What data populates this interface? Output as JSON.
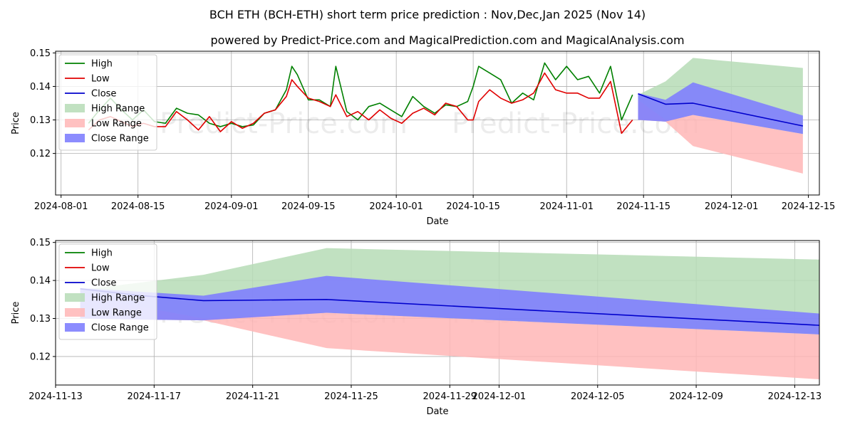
{
  "title": "BCH ETH (BCH-ETH) short term price prediction : Nov,Dec,Jan 2025 (Nov 14)",
  "subtitle": "powered by Predict-Price.com and MagicalPrediction.com and MagicalAnalysis.com",
  "watermark": "Predict-Price.com",
  "colors": {
    "high": "#008000",
    "low": "#e00000",
    "close": "#0000cc",
    "high_range": "#b6dcb6",
    "low_range": "#ffb6b6",
    "close_range": "#7f7ffe"
  },
  "chart_data": [
    {
      "type": "line",
      "name": "history-and-forecast",
      "xlabel": "Date",
      "ylabel": "Price",
      "xlim": [
        "2024-07-31",
        "2024-12-17"
      ],
      "ylim": [
        0.1076,
        0.1505
      ],
      "xticks": [
        "2024-08-01",
        "2024-08-15",
        "2024-09-01",
        "2024-09-15",
        "2024-10-01",
        "2024-10-15",
        "2024-11-01",
        "2024-11-15",
        "2024-12-01",
        "2024-12-15"
      ],
      "yticks": [
        0.12,
        0.13,
        0.14,
        0.15
      ],
      "legend": [
        "High",
        "Low",
        "Close",
        "High Range",
        "Low Range",
        "Close Range"
      ],
      "legend_position": "top-left",
      "grid": true,
      "series": [
        {
          "name": "High",
          "x": [
            "2024-08-06",
            "2024-08-08",
            "2024-08-10",
            "2024-08-12",
            "2024-08-14",
            "2024-08-16",
            "2024-08-18",
            "2024-08-20",
            "2024-08-22",
            "2024-08-24",
            "2024-08-26",
            "2024-08-28",
            "2024-08-30",
            "2024-09-01",
            "2024-09-03",
            "2024-09-05",
            "2024-09-07",
            "2024-09-09",
            "2024-09-11",
            "2024-09-12",
            "2024-09-13",
            "2024-09-15",
            "2024-09-17",
            "2024-09-19",
            "2024-09-20",
            "2024-09-22",
            "2024-09-24",
            "2024-09-26",
            "2024-09-28",
            "2024-09-30",
            "2024-10-02",
            "2024-10-04",
            "2024-10-06",
            "2024-10-08",
            "2024-10-10",
            "2024-10-12",
            "2024-10-14",
            "2024-10-15",
            "2024-10-16",
            "2024-10-18",
            "2024-10-20",
            "2024-10-22",
            "2024-10-24",
            "2024-10-26",
            "2024-10-28",
            "2024-10-30",
            "2024-11-01",
            "2024-11-03",
            "2024-11-05",
            "2024-11-07",
            "2024-11-09",
            "2024-11-11",
            "2024-11-13"
          ],
          "values": [
            0.129,
            0.133,
            0.1365,
            0.133,
            0.13,
            0.133,
            0.1295,
            0.129,
            0.1335,
            0.132,
            0.1315,
            0.129,
            0.128,
            0.129,
            0.128,
            0.1285,
            0.132,
            0.133,
            0.139,
            0.146,
            0.1435,
            0.136,
            0.136,
            0.134,
            0.146,
            0.1325,
            0.13,
            0.134,
            0.135,
            0.133,
            0.131,
            0.137,
            0.134,
            0.132,
            0.1345,
            0.134,
            0.1355,
            0.14,
            0.146,
            0.144,
            0.142,
            0.135,
            0.138,
            0.136,
            0.147,
            0.142,
            0.146,
            0.142,
            0.143,
            0.138,
            0.146,
            0.13,
            0.1375
          ]
        },
        {
          "name": "Low",
          "x": [
            "2024-08-06",
            "2024-08-08",
            "2024-08-10",
            "2024-08-12",
            "2024-08-14",
            "2024-08-16",
            "2024-08-18",
            "2024-08-20",
            "2024-08-22",
            "2024-08-24",
            "2024-08-26",
            "2024-08-28",
            "2024-08-30",
            "2024-09-01",
            "2024-09-03",
            "2024-09-05",
            "2024-09-07",
            "2024-09-09",
            "2024-09-11",
            "2024-09-12",
            "2024-09-13",
            "2024-09-15",
            "2024-09-17",
            "2024-09-19",
            "2024-09-20",
            "2024-09-22",
            "2024-09-24",
            "2024-09-26",
            "2024-09-28",
            "2024-09-30",
            "2024-10-02",
            "2024-10-04",
            "2024-10-06",
            "2024-10-08",
            "2024-10-10",
            "2024-10-12",
            "2024-10-14",
            "2024-10-15",
            "2024-10-16",
            "2024-10-18",
            "2024-10-20",
            "2024-10-22",
            "2024-10-24",
            "2024-10-26",
            "2024-10-28",
            "2024-10-30",
            "2024-11-01",
            "2024-11-03",
            "2024-11-05",
            "2024-11-07",
            "2024-11-09",
            "2024-11-11",
            "2024-11-13"
          ],
          "values": [
            0.127,
            0.13,
            0.131,
            0.1295,
            0.128,
            0.129,
            0.128,
            0.128,
            0.1325,
            0.13,
            0.127,
            0.131,
            0.1265,
            0.1295,
            0.1275,
            0.129,
            0.132,
            0.133,
            0.137,
            0.142,
            0.14,
            0.1365,
            0.1355,
            0.134,
            0.1375,
            0.131,
            0.1325,
            0.13,
            0.133,
            0.1305,
            0.129,
            0.132,
            0.1335,
            0.1315,
            0.135,
            0.134,
            0.13,
            0.13,
            0.1355,
            0.139,
            0.1365,
            0.135,
            0.136,
            0.138,
            0.144,
            0.139,
            0.138,
            0.138,
            0.1365,
            0.1365,
            0.1415,
            0.126,
            0.13
          ]
        },
        {
          "name": "Close",
          "x": [
            "2024-11-14",
            "2024-11-19",
            "2024-11-24",
            "2024-12-14"
          ],
          "values": [
            0.1378,
            0.1347,
            0.135,
            0.1282
          ]
        }
      ],
      "ranges": [
        {
          "name": "High Range",
          "x": [
            "2024-11-14",
            "2024-11-19",
            "2024-11-24",
            "2024-12-14"
          ],
          "upper": [
            0.1375,
            0.1415,
            0.1485,
            0.1455
          ],
          "lower": [
            0.13,
            0.1295,
            0.1315,
            0.1258
          ]
        },
        {
          "name": "Low Range",
          "x": [
            "2024-11-14",
            "2024-11-19",
            "2024-11-24",
            "2024-12-14"
          ],
          "upper": [
            0.136,
            0.13,
            0.1315,
            0.1258
          ],
          "lower": [
            0.13,
            0.1295,
            0.1222,
            0.114
          ]
        },
        {
          "name": "Close Range",
          "x": [
            "2024-11-14",
            "2024-11-19",
            "2024-11-24",
            "2024-12-14"
          ],
          "upper": [
            0.138,
            0.136,
            0.1412,
            0.1313
          ],
          "lower": [
            0.13,
            0.1295,
            0.1315,
            0.1258
          ]
        }
      ]
    },
    {
      "type": "line",
      "name": "forecast-detail",
      "xlabel": "Date",
      "ylabel": "Price",
      "xlim": [
        "2024-11-13",
        "2024-12-14"
      ],
      "ylim": [
        0.1125,
        0.1505
      ],
      "xticks": [
        "2024-11-13",
        "2024-11-17",
        "2024-11-21",
        "2024-11-25",
        "2024-11-29",
        "2024-12-01",
        "2024-12-05",
        "2024-12-09",
        "2024-12-13"
      ],
      "yticks": [
        0.12,
        0.13,
        0.14,
        0.15
      ],
      "legend": [
        "High",
        "Low",
        "Close",
        "High Range",
        "Low Range",
        "Close Range"
      ],
      "legend_position": "top-left",
      "grid": true,
      "series": [
        {
          "name": "Close",
          "x": [
            "2024-11-14",
            "2024-11-16.5",
            "2024-11-19",
            "2024-11-24",
            "2024-12-14"
          ],
          "values": [
            0.1378,
            0.136,
            0.1347,
            0.135,
            0.1282
          ]
        }
      ],
      "ranges": [
        {
          "name": "High Range",
          "x": [
            "2024-11-14",
            "2024-11-16.5",
            "2024-11-19",
            "2024-11-24",
            "2024-12-14"
          ],
          "upper": [
            0.1375,
            0.1395,
            0.1415,
            0.1485,
            0.1455
          ],
          "lower": [
            0.13,
            0.1297,
            0.1295,
            0.1315,
            0.1258
          ]
        },
        {
          "name": "Low Range",
          "x": [
            "2024-11-14",
            "2024-11-16.5",
            "2024-11-19",
            "2024-11-24",
            "2024-12-14"
          ],
          "upper": [
            0.136,
            0.133,
            0.13,
            0.1315,
            0.1258
          ],
          "lower": [
            0.13,
            0.1297,
            0.1295,
            0.1222,
            0.114
          ]
        },
        {
          "name": "Close Range",
          "x": [
            "2024-11-14",
            "2024-11-16.5",
            "2024-11-19",
            "2024-11-24",
            "2024-12-14"
          ],
          "upper": [
            0.138,
            0.137,
            0.136,
            0.1412,
            0.1313
          ],
          "lower": [
            0.13,
            0.1297,
            0.1295,
            0.1315,
            0.1258
          ]
        }
      ]
    }
  ]
}
